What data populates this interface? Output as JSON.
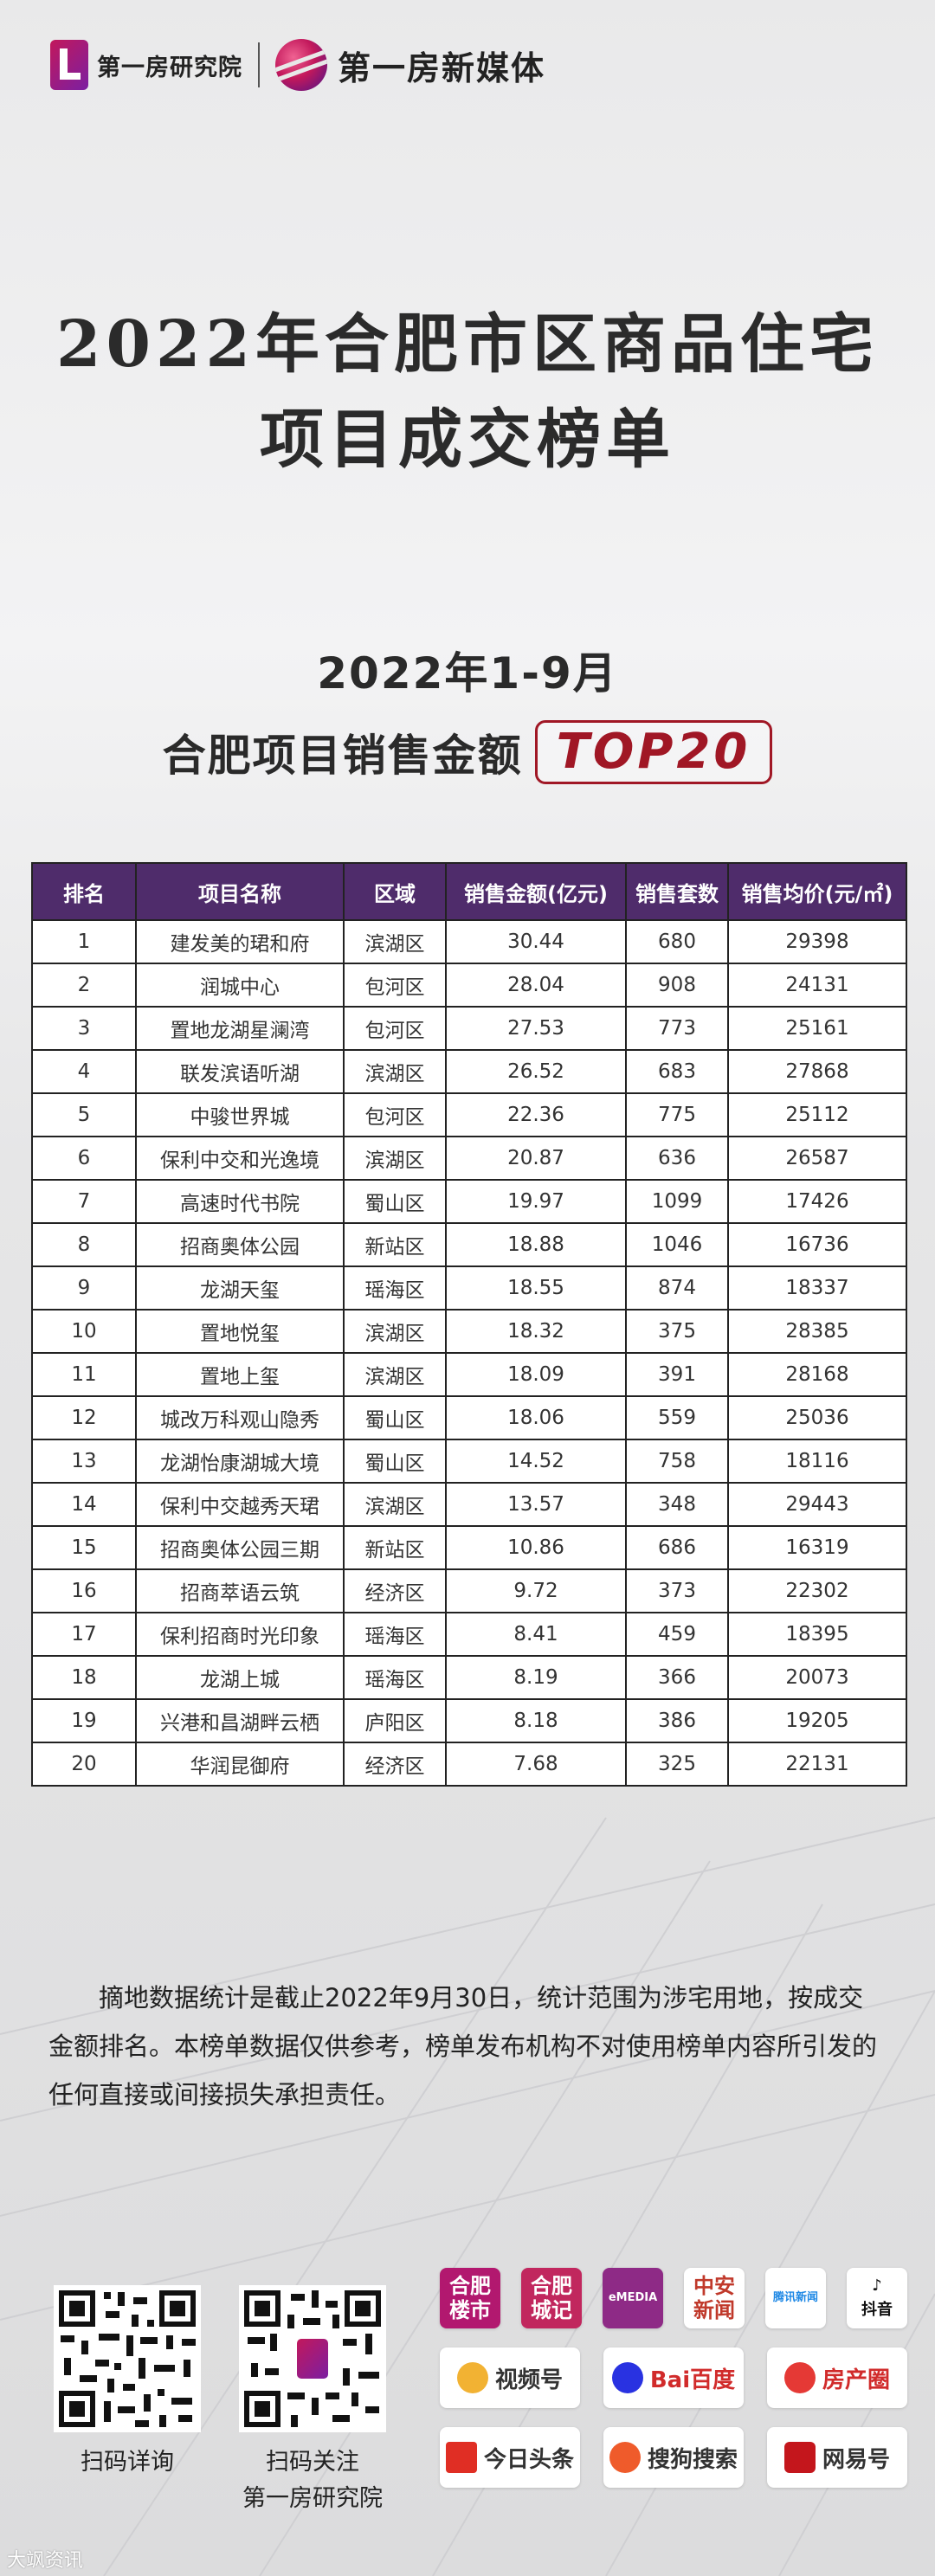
{
  "header": {
    "logo1_text": "第一房研究院",
    "logo2_text": "第一房新媒体"
  },
  "title": {
    "line1": "2022年合肥市区商品住宅",
    "line2": "项目成交榜单"
  },
  "period": "2022年1-9月",
  "subtitle": "合肥项目销售金额",
  "badge": "TOP20",
  "table": {
    "headers": [
      "排名",
      "项目名称",
      "区域",
      "销售金额(亿元)",
      "销售套数",
      "销售均价(元/㎡)"
    ],
    "rows": [
      [
        "1",
        "建发美的珺和府",
        "滨湖区",
        "30.44",
        "680",
        "29398"
      ],
      [
        "2",
        "润城中心",
        "包河区",
        "28.04",
        "908",
        "24131"
      ],
      [
        "3",
        "置地龙湖星澜湾",
        "包河区",
        "27.53",
        "773",
        "25161"
      ],
      [
        "4",
        "联发滨语听湖",
        "滨湖区",
        "26.52",
        "683",
        "27868"
      ],
      [
        "5",
        "中骏世界城",
        "包河区",
        "22.36",
        "775",
        "25112"
      ],
      [
        "6",
        "保利中交和光逸境",
        "滨湖区",
        "20.87",
        "636",
        "26587"
      ],
      [
        "7",
        "高速时代书院",
        "蜀山区",
        "19.97",
        "1099",
        "17426"
      ],
      [
        "8",
        "招商奥体公园",
        "新站区",
        "18.88",
        "1046",
        "16736"
      ],
      [
        "9",
        "龙湖天玺",
        "瑶海区",
        "18.55",
        "874",
        "18337"
      ],
      [
        "10",
        "置地悦玺",
        "滨湖区",
        "18.32",
        "375",
        "28385"
      ],
      [
        "11",
        "置地上玺",
        "滨湖区",
        "18.09",
        "391",
        "28168"
      ],
      [
        "12",
        "城改万科观山隐秀",
        "蜀山区",
        "18.06",
        "559",
        "25036"
      ],
      [
        "13",
        "龙湖怡康湖城大境",
        "蜀山区",
        "14.52",
        "758",
        "18116"
      ],
      [
        "14",
        "保利中交越秀天珺",
        "滨湖区",
        "13.57",
        "348",
        "29443"
      ],
      [
        "15",
        "招商奥体公园三期",
        "新站区",
        "10.86",
        "686",
        "16319"
      ],
      [
        "16",
        "招商萃语云筑",
        "经济区",
        "9.72",
        "373",
        "22302"
      ],
      [
        "17",
        "保利招商时光印象",
        "瑶海区",
        "8.41",
        "459",
        "18395"
      ],
      [
        "18",
        "龙湖上城",
        "瑶海区",
        "8.19",
        "366",
        "20073"
      ],
      [
        "19",
        "兴港和昌湖畔云栖",
        "庐阳区",
        "8.18",
        "386",
        "19205"
      ],
      [
        "20",
        "华润昆御府",
        "经济区",
        "7.68",
        "325",
        "22131"
      ]
    ]
  },
  "note": "摘地数据统计是截止2022年9月30日，统计范围为涉宅用地，按成交金额排名。本榜单数据仅供参考，榜单发布机构不对使用榜单内容所引发的任何直接或间接损失承担责任。",
  "qr": {
    "left_caption": "扫码详询",
    "right_caption_1": "扫码关注",
    "right_caption_2": "第一房研究院"
  },
  "media": {
    "hefei_loushi": [
      "合肥",
      "楼市"
    ],
    "hefei_chengji": [
      "合肥",
      "城记"
    ],
    "emedia": "eMEDIA",
    "zhongan_xinwen": [
      "中安",
      "新闻"
    ],
    "tengxun_xinwen": "腾讯新闻",
    "douyin": "抖音",
    "shipinhao": "视频号",
    "baidu": "Bai百度",
    "fangchanquan": "房产圈",
    "jinri_toutiao": "今日头条",
    "sougou": "搜狗搜索",
    "wangyi": "网易号"
  },
  "watermark": "大飒资讯",
  "colors": {
    "table_header": "#4f2c6b",
    "badge": "#a01725",
    "brand": "#c2185b"
  }
}
